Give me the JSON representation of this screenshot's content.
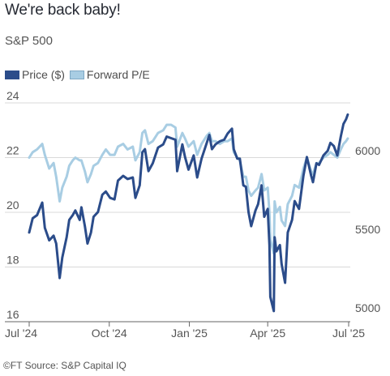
{
  "title": "We're back baby!",
  "subtitle": "S&P 500",
  "source": "©FT Source: S&P Capital IQ",
  "chart_data": {
    "type": "line",
    "left_axis": {
      "ticks": [
        16,
        18,
        20,
        22,
        24
      ],
      "range": [
        16,
        24
      ]
    },
    "right_axis": {
      "ticks": [
        5000,
        5500,
        6000
      ],
      "range": [
        4950,
        6300
      ]
    },
    "x_axis": {
      "labels": [
        "Jul '24",
        "Oct '24",
        "Jan '25",
        "Apr '25",
        "Jul '25"
      ],
      "range": [
        "2024-07-01",
        "2025-07-03"
      ]
    },
    "grid": true,
    "legend_position": "top-left",
    "series": [
      {
        "name": "Price ($)",
        "axis": "right",
        "color": "#2b4c8a",
        "points": [
          [
            "2024-07-01",
            5480
          ],
          [
            "2024-07-05",
            5570
          ],
          [
            "2024-07-10",
            5590
          ],
          [
            "2024-07-16",
            5670
          ],
          [
            "2024-07-19",
            5510
          ],
          [
            "2024-07-24",
            5430
          ],
          [
            "2024-07-29",
            5460
          ],
          [
            "2024-08-01",
            5410
          ],
          [
            "2024-08-05",
            5190
          ],
          [
            "2024-08-08",
            5320
          ],
          [
            "2024-08-13",
            5450
          ],
          [
            "2024-08-16",
            5560
          ],
          [
            "2024-08-20",
            5590
          ],
          [
            "2024-08-23",
            5620
          ],
          [
            "2024-08-28",
            5560
          ],
          [
            "2024-08-30",
            5640
          ],
          [
            "2024-09-03",
            5520
          ],
          [
            "2024-09-06",
            5410
          ],
          [
            "2024-09-10",
            5480
          ],
          [
            "2024-09-13",
            5580
          ],
          [
            "2024-09-18",
            5610
          ],
          [
            "2024-09-23",
            5720
          ],
          [
            "2024-09-27",
            5740
          ],
          [
            "2024-10-02",
            5700
          ],
          [
            "2024-10-07",
            5690
          ],
          [
            "2024-10-11",
            5810
          ],
          [
            "2024-10-17",
            5840
          ],
          [
            "2024-10-22",
            5820
          ],
          [
            "2024-10-28",
            5830
          ],
          [
            "2024-10-31",
            5700
          ],
          [
            "2024-11-05",
            5780
          ],
          [
            "2024-11-08",
            5990
          ],
          [
            "2024-11-11",
            6010
          ],
          [
            "2024-11-15",
            5870
          ],
          [
            "2024-11-20",
            5920
          ],
          [
            "2024-11-26",
            6020
          ],
          [
            "2024-12-02",
            6040
          ],
          [
            "2024-12-06",
            6090
          ],
          [
            "2024-12-11",
            6080
          ],
          [
            "2024-12-16",
            6070
          ],
          [
            "2024-12-18",
            5870
          ],
          [
            "2024-12-24",
            6040
          ],
          [
            "2024-12-27",
            5960
          ],
          [
            "2024-12-31",
            5880
          ],
          [
            "2025-01-06",
            5970
          ],
          [
            "2025-01-10",
            5830
          ],
          [
            "2025-01-15",
            5950
          ],
          [
            "2025-01-21",
            6050
          ],
          [
            "2025-01-24",
            6100
          ],
          [
            "2025-01-27",
            6010
          ],
          [
            "2025-01-31",
            6040
          ],
          [
            "2025-02-05",
            6060
          ],
          [
            "2025-02-10",
            6070
          ],
          [
            "2025-02-14",
            6110
          ],
          [
            "2025-02-19",
            6140
          ],
          [
            "2025-02-21",
            6010
          ],
          [
            "2025-02-25",
            5950
          ],
          [
            "2025-02-28",
            5950
          ],
          [
            "2025-03-04",
            5780
          ],
          [
            "2025-03-07",
            5770
          ],
          [
            "2025-03-10",
            5610
          ],
          [
            "2025-03-13",
            5520
          ],
          [
            "2025-03-18",
            5620
          ],
          [
            "2025-03-21",
            5660
          ],
          [
            "2025-03-25",
            5780
          ],
          [
            "2025-03-28",
            5580
          ],
          [
            "2025-04-01",
            5630
          ],
          [
            "2025-04-03",
            5400
          ],
          [
            "2025-04-04",
            5070
          ],
          [
            "2025-04-08",
            4980
          ],
          [
            "2025-04-09",
            5450
          ],
          [
            "2025-04-11",
            5360
          ],
          [
            "2025-04-15",
            5400
          ],
          [
            "2025-04-17",
            5280
          ],
          [
            "2025-04-21",
            5160
          ],
          [
            "2025-04-24",
            5480
          ],
          [
            "2025-04-29",
            5560
          ],
          [
            "2025-05-02",
            5680
          ],
          [
            "2025-05-07",
            5630
          ],
          [
            "2025-05-12",
            5840
          ],
          [
            "2025-05-16",
            5960
          ],
          [
            "2025-05-21",
            5840
          ],
          [
            "2025-05-23",
            5800
          ],
          [
            "2025-05-27",
            5920
          ],
          [
            "2025-05-30",
            5910
          ],
          [
            "2025-06-04",
            5970
          ],
          [
            "2025-06-09",
            6000
          ],
          [
            "2025-06-12",
            6050
          ],
          [
            "2025-06-16",
            6030
          ],
          [
            "2025-06-20",
            5970
          ],
          [
            "2025-06-24",
            6090
          ],
          [
            "2025-06-27",
            6170
          ],
          [
            "2025-06-30",
            6200
          ],
          [
            "2025-07-02",
            6230
          ]
        ]
      },
      {
        "name": "Forward P/E",
        "axis": "left",
        "color": "#a8cde3",
        "points": [
          [
            "2024-07-01",
            22.0
          ],
          [
            "2024-07-05",
            22.2
          ],
          [
            "2024-07-10",
            22.3
          ],
          [
            "2024-07-16",
            22.5
          ],
          [
            "2024-07-19",
            22.1
          ],
          [
            "2024-07-24",
            21.6
          ],
          [
            "2024-07-29",
            21.8
          ],
          [
            "2024-08-01",
            21.3
          ],
          [
            "2024-08-05",
            20.4
          ],
          [
            "2024-08-08",
            20.9
          ],
          [
            "2024-08-13",
            21.3
          ],
          [
            "2024-08-16",
            21.7
          ],
          [
            "2024-08-20",
            21.9
          ],
          [
            "2024-08-23",
            22.0
          ],
          [
            "2024-08-28",
            21.9
          ],
          [
            "2024-08-30",
            21.9
          ],
          [
            "2024-09-03",
            21.5
          ],
          [
            "2024-09-06",
            21.1
          ],
          [
            "2024-09-10",
            21.4
          ],
          [
            "2024-09-13",
            21.7
          ],
          [
            "2024-09-18",
            21.8
          ],
          [
            "2024-09-23",
            22.1
          ],
          [
            "2024-09-27",
            22.3
          ],
          [
            "2024-10-02",
            22.1
          ],
          [
            "2024-10-07",
            22.1
          ],
          [
            "2024-10-11",
            22.4
          ],
          [
            "2024-10-17",
            22.5
          ],
          [
            "2024-10-22",
            22.3
          ],
          [
            "2024-10-28",
            22.4
          ],
          [
            "2024-10-31",
            21.9
          ],
          [
            "2024-11-05",
            22.2
          ],
          [
            "2024-11-08",
            22.9
          ],
          [
            "2024-11-11",
            23.0
          ],
          [
            "2024-11-15",
            22.5
          ],
          [
            "2024-11-20",
            22.6
          ],
          [
            "2024-11-26",
            22.9
          ],
          [
            "2024-12-02",
            23.0
          ],
          [
            "2024-12-06",
            23.2
          ],
          [
            "2024-12-11",
            23.2
          ],
          [
            "2024-12-16",
            23.1
          ],
          [
            "2024-12-18",
            22.4
          ],
          [
            "2024-12-24",
            22.9
          ],
          [
            "2024-12-27",
            22.7
          ],
          [
            "2024-12-31",
            22.4
          ],
          [
            "2025-01-06",
            22.6
          ],
          [
            "2025-01-10",
            22.1
          ],
          [
            "2025-01-15",
            22.5
          ],
          [
            "2025-01-21",
            22.8
          ],
          [
            "2025-01-24",
            22.9
          ],
          [
            "2025-01-27",
            22.6
          ],
          [
            "2025-01-31",
            22.6
          ],
          [
            "2025-02-05",
            22.5
          ],
          [
            "2025-02-10",
            22.6
          ],
          [
            "2025-02-14",
            22.6
          ],
          [
            "2025-02-19",
            22.7
          ],
          [
            "2025-02-21",
            22.2
          ],
          [
            "2025-02-25",
            22.0
          ],
          [
            "2025-02-28",
            21.9
          ],
          [
            "2025-03-04",
            21.3
          ],
          [
            "2025-03-07",
            21.3
          ],
          [
            "2025-03-10",
            20.8
          ],
          [
            "2025-03-13",
            20.6
          ],
          [
            "2025-03-18",
            20.8
          ],
          [
            "2025-03-21",
            20.9
          ],
          [
            "2025-03-25",
            21.4
          ],
          [
            "2025-03-28",
            20.8
          ],
          [
            "2025-04-01",
            20.9
          ],
          [
            "2025-04-03",
            20.0
          ],
          [
            "2025-04-04",
            19.0
          ],
          [
            "2025-04-08",
            18.5
          ],
          [
            "2025-04-09",
            20.4
          ],
          [
            "2025-04-11",
            20.0
          ],
          [
            "2025-04-15",
            20.2
          ],
          [
            "2025-04-17",
            19.7
          ],
          [
            "2025-04-21",
            19.5
          ],
          [
            "2025-04-24",
            20.3
          ],
          [
            "2025-04-29",
            20.6
          ],
          [
            "2025-05-02",
            21.0
          ],
          [
            "2025-05-07",
            20.9
          ],
          [
            "2025-05-12",
            21.6
          ],
          [
            "2025-05-16",
            22.0
          ],
          [
            "2025-05-21",
            21.5
          ],
          [
            "2025-05-23",
            21.4
          ],
          [
            "2025-05-27",
            21.8
          ],
          [
            "2025-05-30",
            21.8
          ],
          [
            "2025-06-04",
            22.0
          ],
          [
            "2025-06-09",
            22.1
          ],
          [
            "2025-06-12",
            22.2
          ],
          [
            "2025-06-16",
            22.1
          ],
          [
            "2025-06-20",
            22.0
          ],
          [
            "2025-06-24",
            22.3
          ],
          [
            "2025-06-27",
            22.5
          ],
          [
            "2025-06-30",
            22.6
          ],
          [
            "2025-07-02",
            22.7
          ]
        ]
      }
    ]
  }
}
